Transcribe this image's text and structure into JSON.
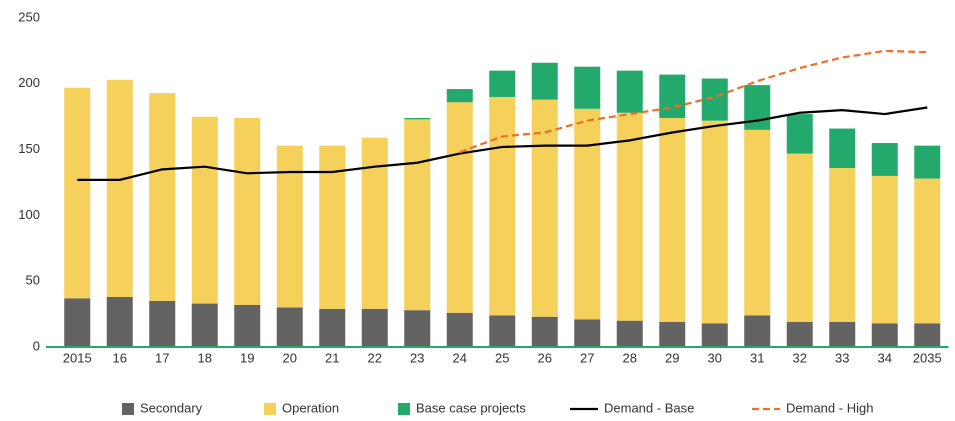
{
  "chart_data": {
    "type": "stacked_bar_line",
    "categories": [
      "2015",
      "16",
      "17",
      "18",
      "19",
      "20",
      "21",
      "22",
      "23",
      "24",
      "25",
      "26",
      "27",
      "28",
      "29",
      "30",
      "31",
      "32",
      "33",
      "34",
      "2035"
    ],
    "series": [
      {
        "name": "Secondary",
        "color": "#636363",
        "kind": "bar",
        "values": [
          37,
          38,
          35,
          33,
          32,
          30,
          29,
          29,
          28,
          26,
          24,
          23,
          21,
          20,
          19,
          18,
          24,
          19,
          19,
          18,
          18
        ]
      },
      {
        "name": "Operation",
        "color": "#f5d05a",
        "kind": "bar",
        "values": [
          160,
          165,
          158,
          142,
          142,
          123,
          124,
          130,
          145,
          160,
          166,
          165,
          160,
          158,
          155,
          154,
          141,
          128,
          117,
          112,
          110
        ]
      },
      {
        "name": "Base case projects",
        "color": "#22a96b",
        "kind": "bar",
        "values": [
          0,
          0,
          0,
          0,
          0,
          0,
          0,
          0,
          1,
          10,
          20,
          28,
          32,
          32,
          33,
          32,
          34,
          30,
          30,
          25,
          25
        ]
      },
      {
        "name": "Demand - Base",
        "color": "#000000",
        "kind": "line",
        "values": [
          127,
          127,
          135,
          137,
          132,
          133,
          133,
          137,
          140,
          147,
          152,
          153,
          153,
          157,
          163,
          168,
          172,
          178,
          180,
          177,
          182
        ]
      },
      {
        "name": "Demand - High",
        "color": "#ec7128",
        "kind": "dashed_line",
        "values": [
          null,
          null,
          null,
          null,
          null,
          null,
          null,
          null,
          null,
          148,
          160,
          163,
          172,
          177,
          182,
          190,
          202,
          212,
          220,
          225,
          224
        ]
      }
    ],
    "ylim": [
      0,
      250
    ],
    "yticks": [
      0,
      50,
      100,
      150,
      200,
      250
    ],
    "grid": false,
    "legend": "bottom"
  }
}
